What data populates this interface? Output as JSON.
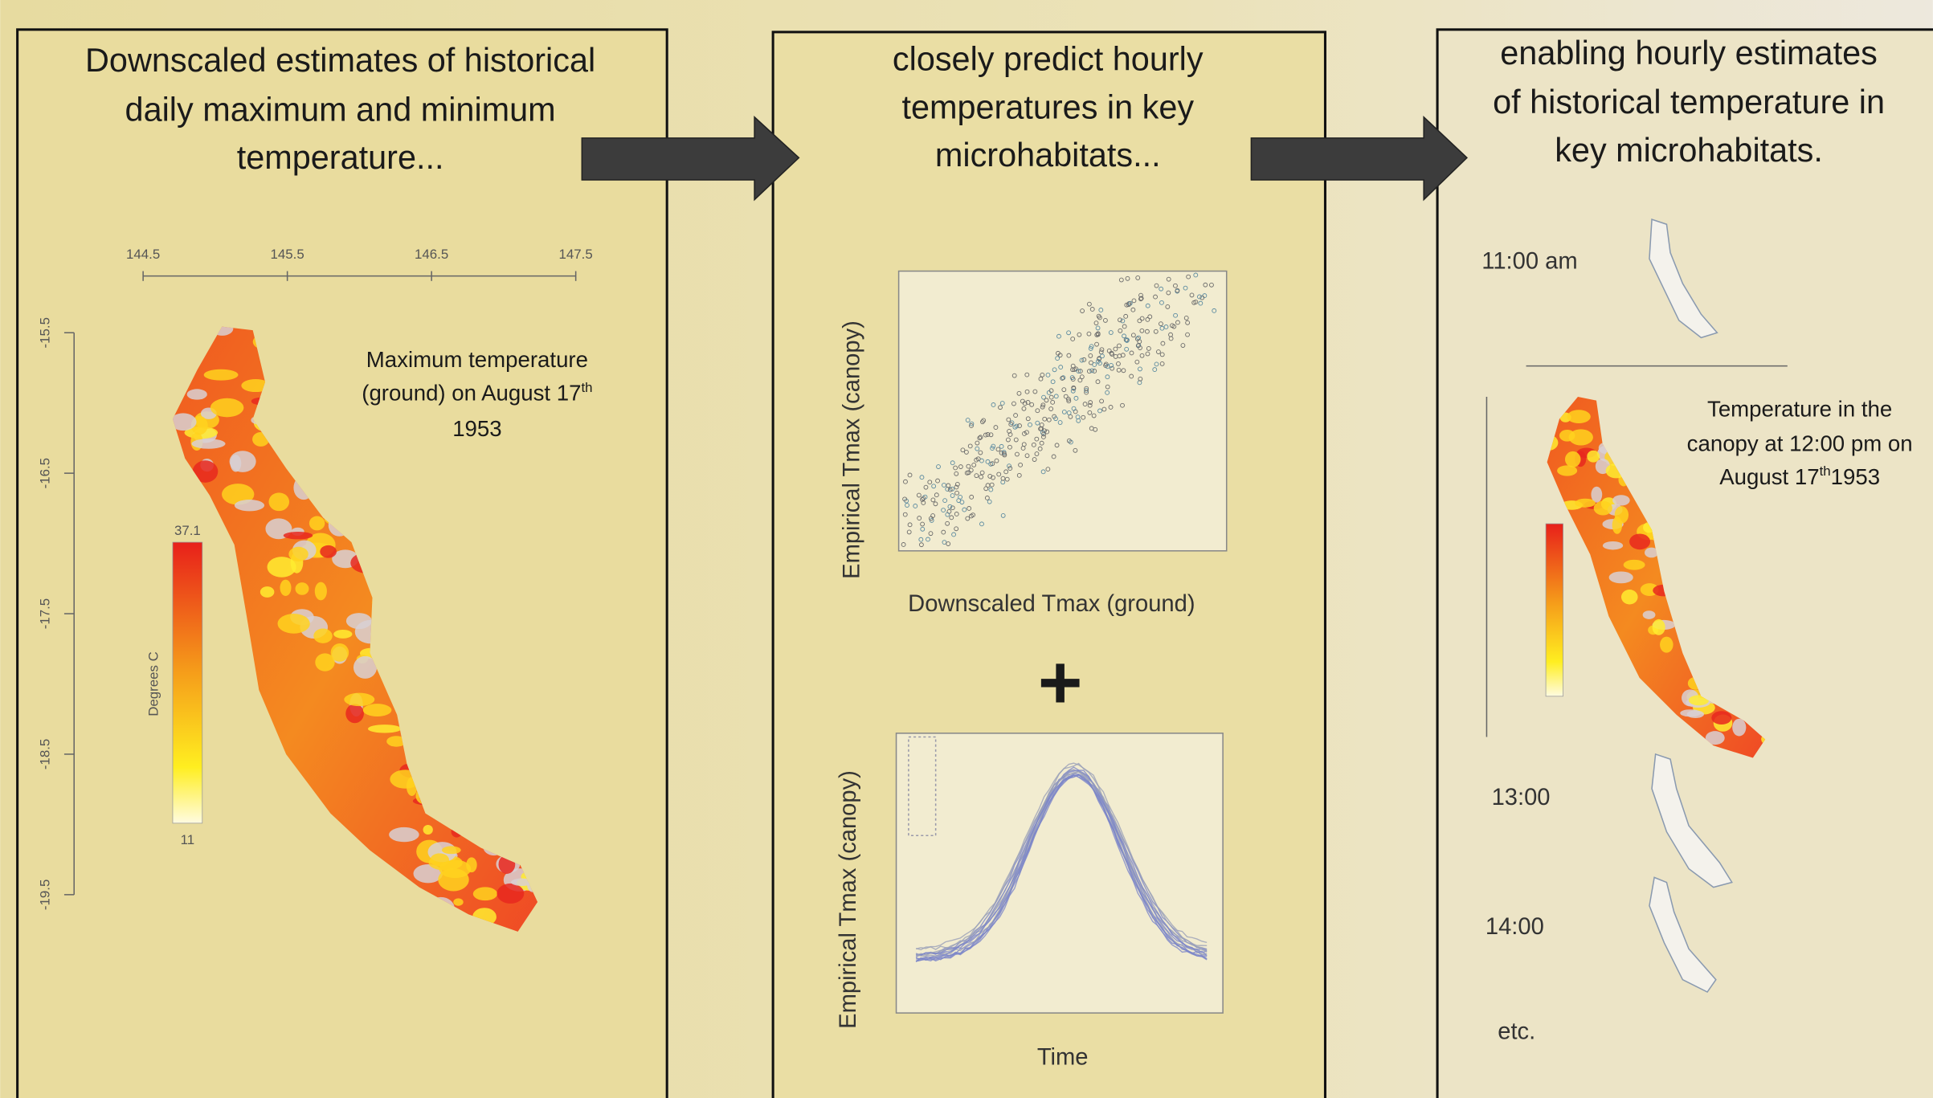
{
  "panels": [
    {
      "title_lines": [
        "Downscaled estimates of historical",
        "daily maximum and minimum",
        "temperature..."
      ],
      "map": {
        "x_ticks": [
          "144.5",
          "145.5",
          "146.5",
          "147.5"
        ],
        "y_ticks": [
          "-15.5",
          "-16.5",
          "-17.5",
          "-18.5",
          "-19.5"
        ],
        "legend_max": "37.1",
        "legend_min": "11",
        "legend_title": "Degrees C",
        "annotation": {
          "lines": [
            "Maximum temperature",
            "(ground) on August 17"
          ],
          "superscript": "th",
          "after": "1953"
        }
      }
    },
    {
      "title_lines": [
        "closely predict hourly",
        "temperatures in key",
        "microhabitats..."
      ],
      "scatter": {
        "y_label": "Empirical Tmax (canopy)",
        "x_label": "Downscaled Tmax (ground)"
      },
      "plus": "+",
      "curve": {
        "y_label": "Empirical Tmax (canopy)",
        "x_label": "Time"
      }
    },
    {
      "title_lines": [
        "enabling hourly estimates",
        "of historical temperature in",
        "key microhabitats."
      ],
      "times": [
        "11:00 am",
        "13:00",
        "14:00",
        "etc."
      ],
      "annotation": {
        "lines": [
          "Temperature  in the",
          "canopy at 12:00 pm on",
          "August 17"
        ],
        "superscript": "th",
        "after": "1953"
      }
    }
  ]
}
